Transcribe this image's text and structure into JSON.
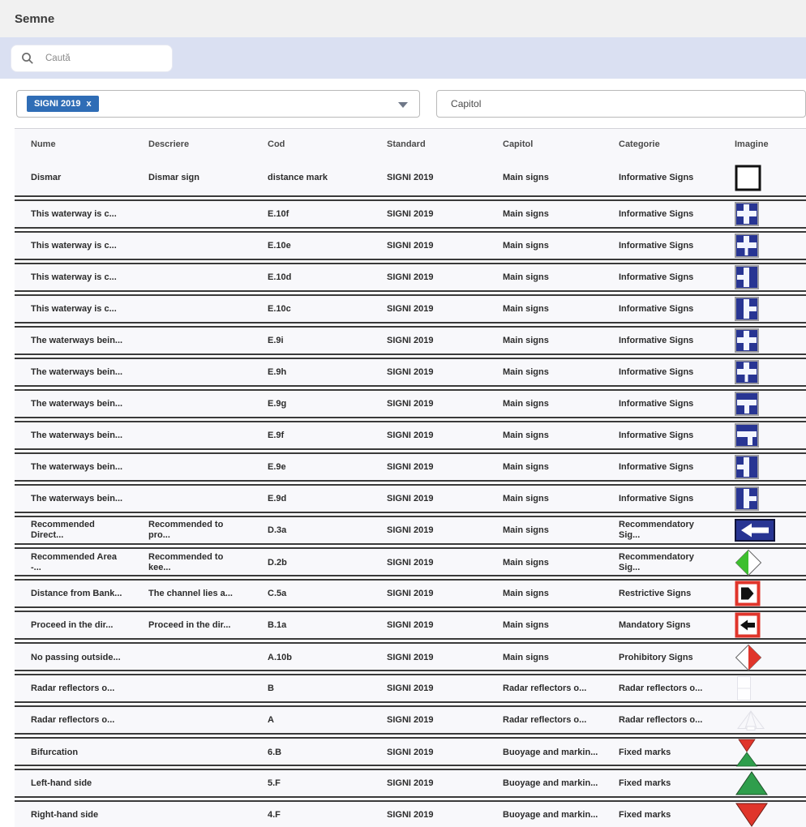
{
  "page": {
    "title": "Semne"
  },
  "search": {
    "placeholder": "Caută"
  },
  "filters": {
    "standard": {
      "chip_label": "SIGNI 2019",
      "chip_remove": "x"
    },
    "capitol": {
      "placeholder": "Capitol"
    }
  },
  "colors": {
    "accent_blue": "#2f6db6",
    "searchbar_bg": "#dae0f2",
    "sign_navy": "#283593",
    "sign_red": "#e0352b",
    "sign_green": "#2f9e4c",
    "sign_bright_green": "#3dbf2e",
    "row_border": "#3a3a3a"
  },
  "table": {
    "headers": [
      "Nume",
      "Descriere",
      "Cod",
      "Standard",
      "Capitol",
      "Categorie",
      "Imagine"
    ],
    "rows": [
      {
        "nume": "Dismar",
        "descriere": "Dismar sign",
        "cod": "distance mark",
        "standard": "SIGNI 2019",
        "capitol": "Main signs",
        "categorie": "Informative Signs",
        "imagine": "white-square"
      },
      {
        "nume": "This waterway is c...",
        "descriere": "",
        "cod": "E.10f",
        "standard": "SIGNI 2019",
        "capitol": "Main signs",
        "categorie": "Informative Signs",
        "imagine": "blue-cross"
      },
      {
        "nume": "This waterway is c...",
        "descriere": "",
        "cod": "E.10e",
        "standard": "SIGNI 2019",
        "capitol": "Main signs",
        "categorie": "Informative Signs",
        "imagine": "blue-cross-thin-bottom"
      },
      {
        "nume": "This waterway is c...",
        "descriere": "",
        "cod": "E.10d",
        "standard": "SIGNI 2019",
        "capitol": "Main signs",
        "categorie": "Informative Signs",
        "imagine": "blue-vert-left-arm"
      },
      {
        "nume": "This waterway is c...",
        "descriere": "",
        "cod": "E.10c",
        "standard": "SIGNI 2019",
        "capitol": "Main signs",
        "categorie": "Informative Signs",
        "imagine": "blue-vert-right-arm"
      },
      {
        "nume": "The waterways bein...",
        "descriere": "",
        "cod": "E.9i",
        "standard": "SIGNI 2019",
        "capitol": "Main signs",
        "categorie": "Informative Signs",
        "imagine": "blue-cross"
      },
      {
        "nume": "The waterways bein...",
        "descriere": "",
        "cod": "E.9h",
        "standard": "SIGNI 2019",
        "capitol": "Main signs",
        "categorie": "Informative Signs",
        "imagine": "blue-cross-thin-bottom"
      },
      {
        "nume": "The waterways bein...",
        "descriere": "",
        "cod": "E.9g",
        "standard": "SIGNI 2019",
        "capitol": "Main signs",
        "categorie": "Informative Signs",
        "imagine": "blue-tee-down"
      },
      {
        "nume": "The waterways bein...",
        "descriere": "",
        "cod": "E.9f",
        "standard": "SIGNI 2019",
        "capitol": "Main signs",
        "categorie": "Informative Signs",
        "imagine": "blue-tee-down-right"
      },
      {
        "nume": "The waterways bein...",
        "descriere": "",
        "cod": "E.9e",
        "standard": "SIGNI 2019",
        "capitol": "Main signs",
        "categorie": "Informative Signs",
        "imagine": "blue-vert-left-arm"
      },
      {
        "nume": "The waterways bein...",
        "descriere": "",
        "cod": "E.9d",
        "standard": "SIGNI 2019",
        "capitol": "Main signs",
        "categorie": "Informative Signs",
        "imagine": "blue-vert-right-arm"
      },
      {
        "nume": "Recommended Direct...",
        "descriere": "Recommended to pro...",
        "cod": "D.3a",
        "standard": "SIGNI 2019",
        "capitol": "Main signs",
        "categorie": "Recommendatory Sig...",
        "imagine": "blue-arrow-left"
      },
      {
        "nume": "Recommended Area -...",
        "descriere": "Recommended to kee...",
        "cod": "D.2b",
        "standard": "SIGNI 2019",
        "capitol": "Main signs",
        "categorie": "Recommendatory Sig...",
        "imagine": "diamond-green-white"
      },
      {
        "nume": "Distance from Bank...",
        "descriere": "The channel lies a...",
        "cod": "C.5a",
        "standard": "SIGNI 2019",
        "capitol": "Main signs",
        "categorie": "Restrictive Signs",
        "imagine": "red-square-black-pentagon"
      },
      {
        "nume": "Proceed in the dir...",
        "descriere": "Proceed in the dir...",
        "cod": "B.1a",
        "standard": "SIGNI 2019",
        "capitol": "Main signs",
        "categorie": "Mandatory Signs",
        "imagine": "red-square-black-arrow"
      },
      {
        "nume": "No passing outside...",
        "descriere": "",
        "cod": "A.10b",
        "standard": "SIGNI 2019",
        "capitol": "Main signs",
        "categorie": "Prohibitory Signs",
        "imagine": "diamond-white-red"
      },
      {
        "nume": "Radar reflectors o...",
        "descriere": "",
        "cod": "B",
        "standard": "SIGNI 2019",
        "capitol": "Radar reflectors o...",
        "categorie": "Radar reflectors o...",
        "imagine": "radar-rects-faint"
      },
      {
        "nume": "Radar reflectors o...",
        "descriere": "",
        "cod": "A",
        "standard": "SIGNI 2019",
        "capitol": "Radar reflectors o...",
        "categorie": "Radar reflectors o...",
        "imagine": "radar-cone-faint"
      },
      {
        "nume": "Bifurcation",
        "descriere": "",
        "cod": "6.B",
        "standard": "SIGNI 2019",
        "capitol": "Buoyage and markin...",
        "categorie": "Fixed marks",
        "imagine": "triangles-red-green"
      },
      {
        "nume": "Left-hand side",
        "descriere": "",
        "cod": "5.F",
        "standard": "SIGNI 2019",
        "capitol": "Buoyage and markin...",
        "categorie": "Fixed marks",
        "imagine": "triangle-green-up"
      },
      {
        "nume": "Right-hand side",
        "descriere": "",
        "cod": "4.F",
        "standard": "SIGNI 2019",
        "capitol": "Buoyage and markin...",
        "categorie": "Fixed marks",
        "imagine": "triangle-red-down"
      }
    ]
  }
}
